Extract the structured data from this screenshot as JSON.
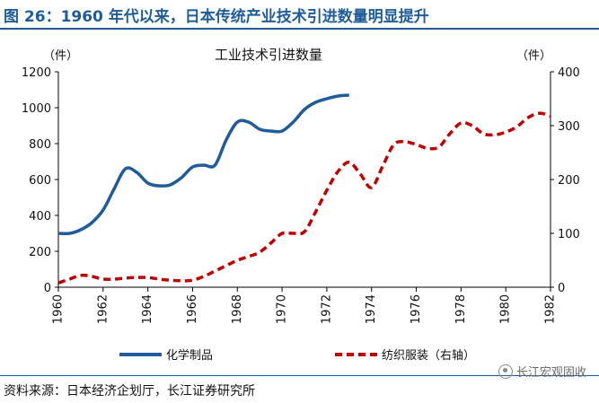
{
  "header": {
    "title": "图 26：1960 年代以来，日本传统产业技术引进数量明显提升"
  },
  "chart_data": {
    "type": "line",
    "title": "工业技术引进数量",
    "left_unit": "（件）",
    "right_unit": "（件）",
    "x": {
      "range": [
        1960,
        1982
      ],
      "ticks": [
        "1960",
        "1962",
        "1964",
        "1966",
        "1968",
        "1970",
        "1972",
        "1974",
        "1976",
        "1978",
        "1980",
        "1982"
      ]
    },
    "y_left": {
      "range": [
        0,
        1200
      ],
      "ticks": [
        "0",
        "200",
        "400",
        "600",
        "800",
        "1000",
        "1200"
      ]
    },
    "y_right": {
      "range": [
        0,
        400
      ],
      "ticks": [
        "0",
        "100",
        "200",
        "300",
        "400"
      ]
    },
    "grid": false,
    "legend_position": "bottom",
    "series": [
      {
        "name": "化学制品",
        "axis": "left",
        "color": "#1f5c99",
        "style": "solid",
        "x": [
          1960,
          1960.5,
          1961,
          1961.5,
          1962,
          1962.5,
          1963,
          1963.5,
          1964,
          1964.5,
          1965,
          1965.5,
          1966,
          1966.5,
          1967,
          1967.5,
          1968,
          1968.5,
          1969,
          1969.5,
          1970,
          1970.5,
          1971,
          1971.5,
          1972,
          1972.5,
          1973
        ],
        "values": [
          300,
          300,
          320,
          360,
          430,
          550,
          660,
          640,
          580,
          565,
          570,
          610,
          670,
          680,
          680,
          820,
          920,
          920,
          880,
          870,
          870,
          920,
          990,
          1030,
          1050,
          1065,
          1070
        ]
      },
      {
        "name": "纺织服装（右轴）",
        "axis": "right",
        "color": "#c00000",
        "style": "dashed",
        "x": [
          1960,
          1960.5,
          1961,
          1961.5,
          1962,
          1962.5,
          1963,
          1963.5,
          1964,
          1964.5,
          1965,
          1965.5,
          1966,
          1966.5,
          1967,
          1967.5,
          1968,
          1968.5,
          1969,
          1969.5,
          1970,
          1970.5,
          1971,
          1971.5,
          1972,
          1972.5,
          1973,
          1973.5,
          1974,
          1974.5,
          1975,
          1975.5,
          1976,
          1976.5,
          1977,
          1977.5,
          1978,
          1978.5,
          1979,
          1979.5,
          1980,
          1980.5,
          1981,
          1981.5,
          1982
        ],
        "values": [
          8,
          15,
          22,
          20,
          15,
          15,
          17,
          18,
          18,
          15,
          13,
          12,
          13,
          20,
          30,
          40,
          50,
          57,
          65,
          82,
          100,
          100,
          103,
          140,
          180,
          215,
          232,
          210,
          185,
          225,
          265,
          270,
          265,
          258,
          260,
          285,
          305,
          300,
          285,
          283,
          288,
          298,
          315,
          323,
          318
        ]
      }
    ]
  },
  "source": "资料来源：日本经济企划厅，长江证券研究所",
  "watermark": {
    "text": "长江宏观固收",
    "icon": "wechat-icon"
  }
}
